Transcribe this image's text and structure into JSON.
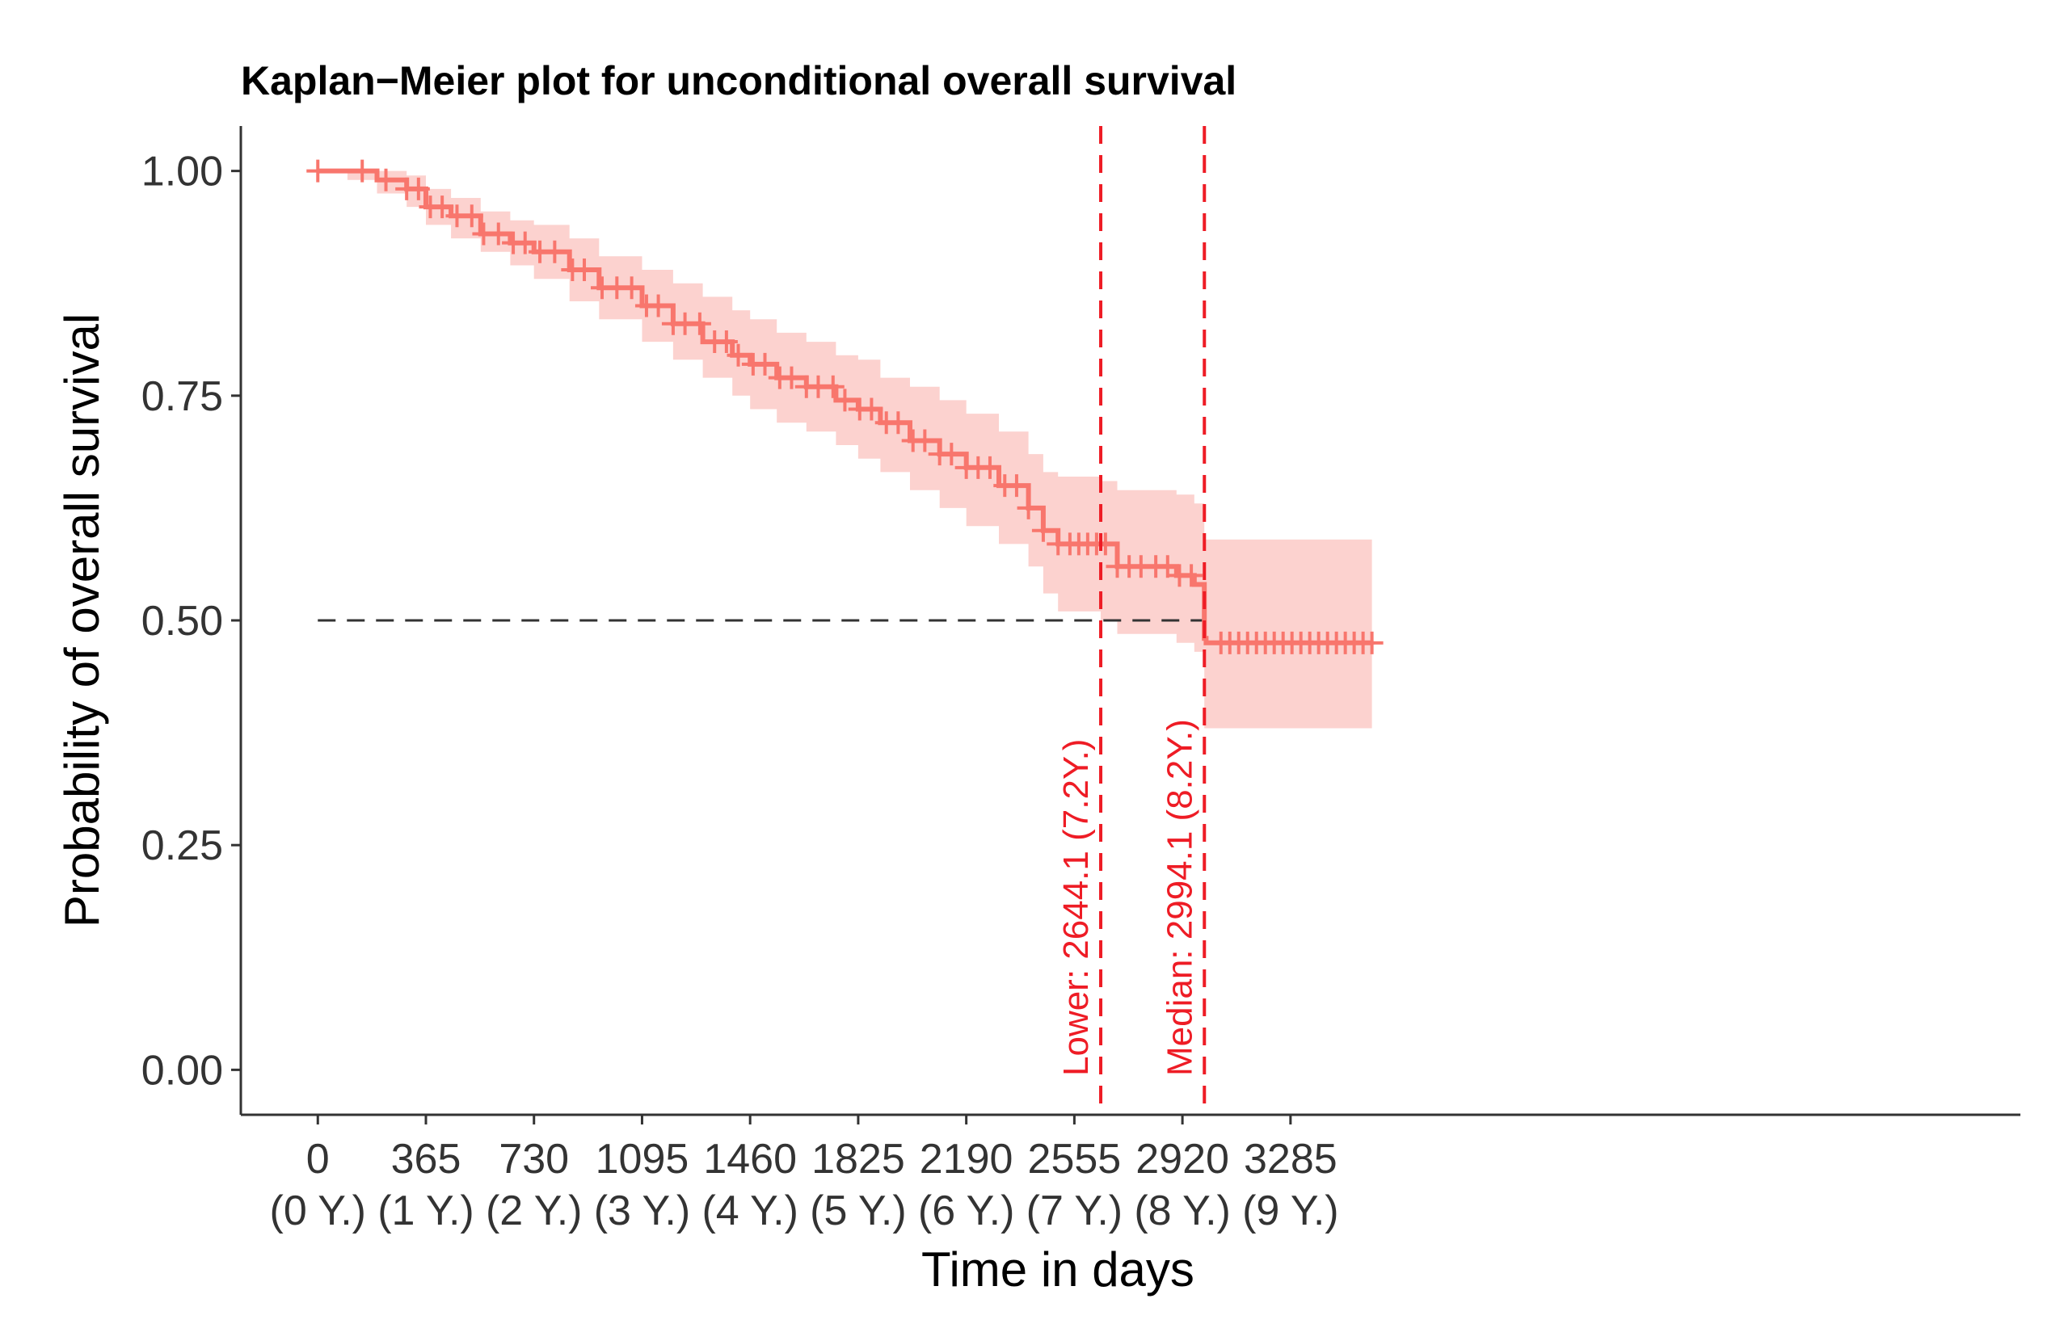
{
  "chart_data": {
    "type": "line",
    "title": "Kaplan−Meier plot for unconditional overall survival",
    "xlabel": "Time in days",
    "ylabel": "Probability of overall survival",
    "xlim": [
      -260,
      5750
    ],
    "ylim": [
      -0.05,
      1.05
    ],
    "x_ticks": [
      {
        "value": 0,
        "label": "0",
        "sublabel": "(0 Y.)"
      },
      {
        "value": 365,
        "label": "365",
        "sublabel": "(1 Y.)"
      },
      {
        "value": 730,
        "label": "730",
        "sublabel": "(2 Y.)"
      },
      {
        "value": 1095,
        "label": "1095",
        "sublabel": "(3 Y.)"
      },
      {
        "value": 1460,
        "label": "1460",
        "sublabel": "(4 Y.)"
      },
      {
        "value": 1825,
        "label": "1825",
        "sublabel": "(5 Y.)"
      },
      {
        "value": 2190,
        "label": "2190",
        "sublabel": "(6 Y.)"
      },
      {
        "value": 2555,
        "label": "2555",
        "sublabel": "(7 Y.)"
      },
      {
        "value": 2920,
        "label": "2920",
        "sublabel": "(8 Y.)"
      },
      {
        "value": 3285,
        "label": "3285",
        "sublabel": "(9 Y.)"
      }
    ],
    "y_ticks": [
      {
        "value": 0.0,
        "label": "0.00"
      },
      {
        "value": 0.25,
        "label": "0.25"
      },
      {
        "value": 0.5,
        "label": "0.50"
      },
      {
        "value": 0.75,
        "label": "0.75"
      },
      {
        "value": 1.0,
        "label": "1.00"
      }
    ],
    "series": [
      {
        "name": "Overall survival",
        "color": "#f8766d",
        "band_color": "#fcd2cf",
        "x": [
          0,
          100,
          200,
          300,
          365,
          450,
          550,
          650,
          730,
          850,
          950,
          1095,
          1200,
          1300,
          1400,
          1460,
          1550,
          1650,
          1750,
          1825,
          1900,
          2000,
          2100,
          2190,
          2300,
          2400,
          2450,
          2500,
          2644,
          2700,
          2900,
          2960,
          2994,
          3000,
          3300,
          3560
        ],
        "y": [
          1.0,
          1.0,
          0.99,
          0.98,
          0.96,
          0.95,
          0.93,
          0.92,
          0.91,
          0.89,
          0.87,
          0.85,
          0.83,
          0.81,
          0.795,
          0.785,
          0.77,
          0.76,
          0.745,
          0.735,
          0.72,
          0.7,
          0.685,
          0.67,
          0.65,
          0.625,
          0.6,
          0.585,
          0.585,
          0.56,
          0.55,
          0.54,
          0.48,
          0.475,
          0.475,
          0.475
        ],
        "upper": [
          1.0,
          1.0,
          1.0,
          0.995,
          0.98,
          0.97,
          0.955,
          0.945,
          0.94,
          0.925,
          0.905,
          0.89,
          0.875,
          0.86,
          0.845,
          0.835,
          0.82,
          0.81,
          0.795,
          0.79,
          0.77,
          0.76,
          0.745,
          0.73,
          0.71,
          0.685,
          0.665,
          0.66,
          0.655,
          0.645,
          0.64,
          0.63,
          0.59,
          0.59,
          0.59,
          0.59
        ],
        "lower": [
          1.0,
          0.99,
          0.975,
          0.96,
          0.94,
          0.925,
          0.91,
          0.895,
          0.88,
          0.855,
          0.835,
          0.81,
          0.79,
          0.77,
          0.75,
          0.735,
          0.72,
          0.71,
          0.695,
          0.68,
          0.665,
          0.645,
          0.625,
          0.605,
          0.585,
          0.56,
          0.53,
          0.51,
          0.5,
          0.485,
          0.475,
          0.465,
          0.38,
          0.38,
          0.38,
          0.38
        ],
        "censor_x": [
          0,
          150,
          230,
          300,
          340,
          380,
          420,
          470,
          520,
          560,
          610,
          660,
          700,
          750,
          800,
          860,
          900,
          960,
          1010,
          1060,
          1110,
          1150,
          1200,
          1240,
          1290,
          1340,
          1380,
          1420,
          1470,
          1510,
          1560,
          1600,
          1650,
          1690,
          1740,
          1780,
          1830,
          1870,
          1920,
          1960,
          2010,
          2050,
          2100,
          2140,
          2190,
          2230,
          2270,
          2320,
          2360,
          2400,
          2450,
          2500,
          2540,
          2570,
          2600,
          2630,
          2660,
          2700,
          2740,
          2780,
          2830,
          2870,
          2910,
          2950,
          3050,
          3080,
          3110,
          3140,
          3170,
          3200,
          3230,
          3260,
          3290,
          3320,
          3350,
          3380,
          3410,
          3440,
          3470,
          3500,
          3530,
          3560
        ]
      }
    ],
    "reference_lines": {
      "horizontal": {
        "y": 0.5,
        "color": "#333333"
      },
      "vertical": [
        {
          "x": 2644.1,
          "color": "#ee1c25",
          "label": "Lower: 2644.1 (7.2Y.)"
        },
        {
          "x": 2994.1,
          "color": "#ee1c25",
          "label": "Median: 2994.1 (8.2Y.)"
        }
      ]
    }
  }
}
